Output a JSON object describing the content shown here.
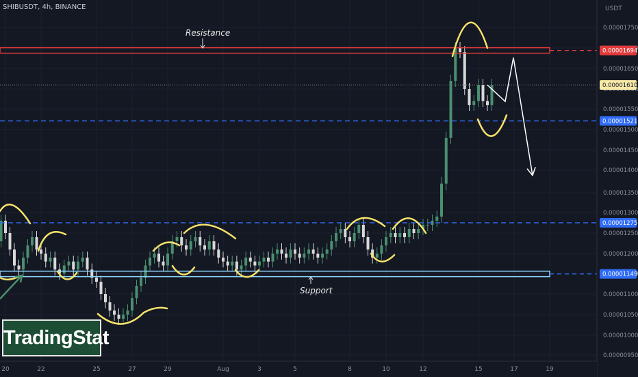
{
  "header": {
    "symbol_line": "SHIBUSDT, 4h, BINANCE"
  },
  "logo": {
    "text": "TradingStat"
  },
  "colors": {
    "background": "#141823",
    "up_candle": "#4a8f6f",
    "down_candle": "#d8d8d8",
    "resistance": "#e23b3b",
    "support_line": "#2f6bf5",
    "support_zone": "#8fd7ff",
    "pattern": "#f7e36a",
    "projection": "#ffffff",
    "current_price": "#f7e9a8"
  },
  "annotations": {
    "resistance": "Resistance",
    "support": "Support"
  },
  "chart_data": {
    "type": "candlestick",
    "symbol": "SHIBUSDT",
    "timeframe": "4h",
    "exchange": "BINANCE",
    "y_axis_unit": "USDT",
    "ylim": [
      9.5e-06,
      1.8e-05
    ],
    "y_ticks": [
      "0.00001750",
      "0.00001700",
      "0.00001650",
      "0.00001600",
      "0.00001550",
      "0.00001500",
      "0.00001450",
      "0.00001400",
      "0.00001350",
      "0.00001300",
      "0.00001250",
      "0.00001200",
      "0.00001150",
      "0.00001100",
      "0.00001050",
      "0.00001000",
      "0.00000950"
    ],
    "x_ticks": [
      "20",
      "22",
      "25",
      "27",
      "29",
      "Aug",
      "3",
      "5",
      "8",
      "10",
      "12",
      "15",
      "17",
      "19"
    ],
    "levels": [
      {
        "label": "0.00001694",
        "value": 1.694e-05,
        "kind": "resistance"
      },
      {
        "label": "0.00001521",
        "value": 1.521e-05,
        "kind": "level"
      },
      {
        "label": "0.00001275",
        "value": 1.275e-05,
        "kind": "level"
      },
      {
        "label": "0.00001149",
        "value": 1.149e-05,
        "kind": "support"
      }
    ],
    "current_price": {
      "label": "0.00001610",
      "value": 1.61e-05
    },
    "x_range_days": [
      19.5,
      50
    ],
    "day_anchors": [
      [
        20,
        20
      ],
      [
        22,
        22
      ],
      [
        25,
        25
      ],
      [
        27,
        27
      ],
      [
        29,
        29
      ],
      [
        32,
        32
      ],
      [
        34,
        34
      ],
      [
        36,
        36
      ],
      [
        39,
        39
      ],
      [
        41,
        41
      ],
      [
        43,
        43
      ],
      [
        46,
        46
      ],
      [
        48,
        48
      ],
      [
        50,
        50
      ]
    ],
    "series_close": [
      [
        19.5,
        1.23
      ],
      [
        19.75,
        1.28
      ],
      [
        20,
        1.25
      ],
      [
        20.25,
        1.21
      ],
      [
        20.5,
        1.17
      ],
      [
        20.75,
        1.16
      ],
      [
        21,
        1.19
      ],
      [
        21.25,
        1.22
      ],
      [
        21.5,
        1.24
      ],
      [
        21.75,
        1.21
      ],
      [
        22,
        1.2
      ],
      [
        22.25,
        1.18
      ],
      [
        22.5,
        1.19
      ],
      [
        22.75,
        1.16
      ],
      [
        23,
        1.15
      ],
      [
        23.25,
        1.17
      ],
      [
        23.5,
        1.18
      ],
      [
        23.75,
        1.16
      ],
      [
        24,
        1.18
      ],
      [
        24.25,
        1.19
      ],
      [
        24.5,
        1.16
      ],
      [
        24.75,
        1.14
      ],
      [
        25,
        1.13
      ],
      [
        25.25,
        1.1
      ],
      [
        25.5,
        1.08
      ],
      [
        25.75,
        1.06
      ],
      [
        26,
        1.05
      ],
      [
        26.25,
        1.04
      ],
      [
        26.5,
        1.05
      ],
      [
        26.75,
        1.06
      ],
      [
        27,
        1.09
      ],
      [
        27.25,
        1.12
      ],
      [
        27.5,
        1.14
      ],
      [
        27.75,
        1.17
      ],
      [
        28,
        1.19
      ],
      [
        28.25,
        1.2
      ],
      [
        28.5,
        1.18
      ],
      [
        28.75,
        1.17
      ],
      [
        29,
        1.2
      ],
      [
        29.25,
        1.23
      ],
      [
        29.5,
        1.24
      ],
      [
        29.75,
        1.22
      ],
      [
        30,
        1.21
      ],
      [
        30.25,
        1.23
      ],
      [
        30.5,
        1.24
      ],
      [
        30.75,
        1.22
      ],
      [
        31,
        1.21
      ],
      [
        31.25,
        1.23
      ],
      [
        31.5,
        1.21
      ],
      [
        31.75,
        1.19
      ],
      [
        32,
        1.18
      ],
      [
        32.25,
        1.17
      ],
      [
        32.5,
        1.18
      ],
      [
        32.75,
        1.16
      ],
      [
        33,
        1.17
      ],
      [
        33.25,
        1.19
      ],
      [
        33.5,
        1.18
      ],
      [
        33.75,
        1.17
      ],
      [
        34,
        1.18
      ],
      [
        34.25,
        1.19
      ],
      [
        34.5,
        1.18
      ],
      [
        34.75,
        1.2
      ],
      [
        35,
        1.21
      ],
      [
        35.25,
        1.2
      ],
      [
        35.5,
        1.19
      ],
      [
        35.75,
        1.21
      ],
      [
        36,
        1.2
      ],
      [
        36.25,
        1.19
      ],
      [
        36.5,
        1.2
      ],
      [
        36.75,
        1.21
      ],
      [
        37,
        1.2
      ],
      [
        37.25,
        1.19
      ],
      [
        37.5,
        1.2
      ],
      [
        37.75,
        1.21
      ],
      [
        38,
        1.23
      ],
      [
        38.25,
        1.25
      ],
      [
        38.5,
        1.26
      ],
      [
        38.75,
        1.24
      ],
      [
        39,
        1.23
      ],
      [
        39.25,
        1.25
      ],
      [
        39.5,
        1.27
      ],
      [
        39.75,
        1.24
      ],
      [
        40,
        1.21
      ],
      [
        40.25,
        1.19
      ],
      [
        40.5,
        1.2
      ],
      [
        40.75,
        1.22
      ],
      [
        41,
        1.24
      ],
      [
        41.25,
        1.25
      ],
      [
        41.5,
        1.24
      ],
      [
        41.75,
        1.25
      ],
      [
        42,
        1.24
      ],
      [
        42.25,
        1.26
      ],
      [
        42.5,
        1.25
      ],
      [
        42.75,
        1.26
      ],
      [
        43,
        1.27
      ],
      [
        43.25,
        1.27
      ],
      [
        43.5,
        1.28
      ],
      [
        43.75,
        1.29
      ],
      [
        44,
        1.37
      ],
      [
        44.25,
        1.48
      ],
      [
        44.5,
        1.62
      ],
      [
        44.75,
        1.7
      ],
      [
        45,
        1.69
      ],
      [
        45.25,
        1.6
      ],
      [
        45.5,
        1.56
      ],
      [
        45.75,
        1.57
      ],
      [
        46,
        1.61
      ],
      [
        46.25,
        1.57
      ],
      [
        46.5,
        1.56
      ],
      [
        46.75,
        1.61
      ]
    ]
  }
}
